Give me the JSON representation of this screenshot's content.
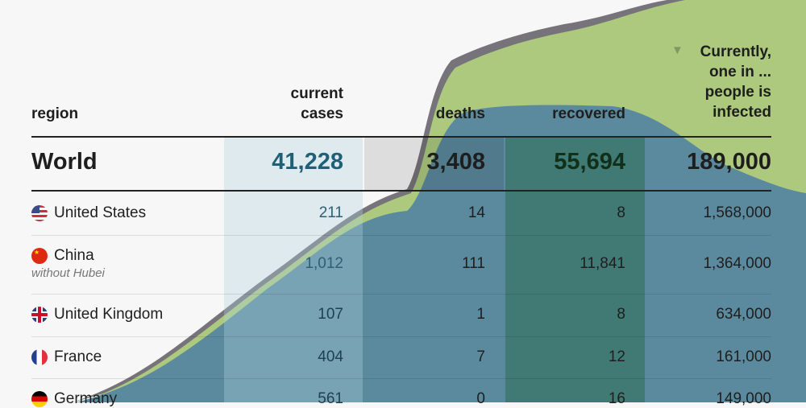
{
  "headers": {
    "region": "region",
    "current_cases": "current cases",
    "deaths": "deaths",
    "recovered": "recovered",
    "infected": "Currently, one in ... people is infected"
  },
  "world": {
    "label": "World",
    "current_cases": "41,228",
    "deaths": "3,408",
    "recovered": "55,694",
    "infected": "189,000"
  },
  "rows": [
    {
      "name": "United States",
      "note": "",
      "current_cases": "211",
      "deaths": "14",
      "recovered": "8",
      "infected": "1,568,000",
      "flag": "us-flag"
    },
    {
      "name": "China",
      "note": "without Hubei",
      "current_cases": "1,012",
      "deaths": "111",
      "recovered": "11,841",
      "infected": "1,364,000",
      "flag": "china-flag"
    },
    {
      "name": "United Kingdom",
      "note": "",
      "current_cases": "107",
      "deaths": "1",
      "recovered": "8",
      "infected": "634,000",
      "flag": "uk-flag"
    },
    {
      "name": "France",
      "note": "",
      "current_cases": "404",
      "deaths": "7",
      "recovered": "12",
      "infected": "161,000",
      "flag": "france-flag"
    },
    {
      "name": "Germany",
      "note": "",
      "current_cases": "561",
      "deaths": "0",
      "recovered": "16",
      "infected": "149,000",
      "flag": "germany-flag"
    }
  ],
  "colors": {
    "cases_area": "#5b8a9e",
    "recovered_area": "#acc97e",
    "deaths_line": "#76737a"
  }
}
